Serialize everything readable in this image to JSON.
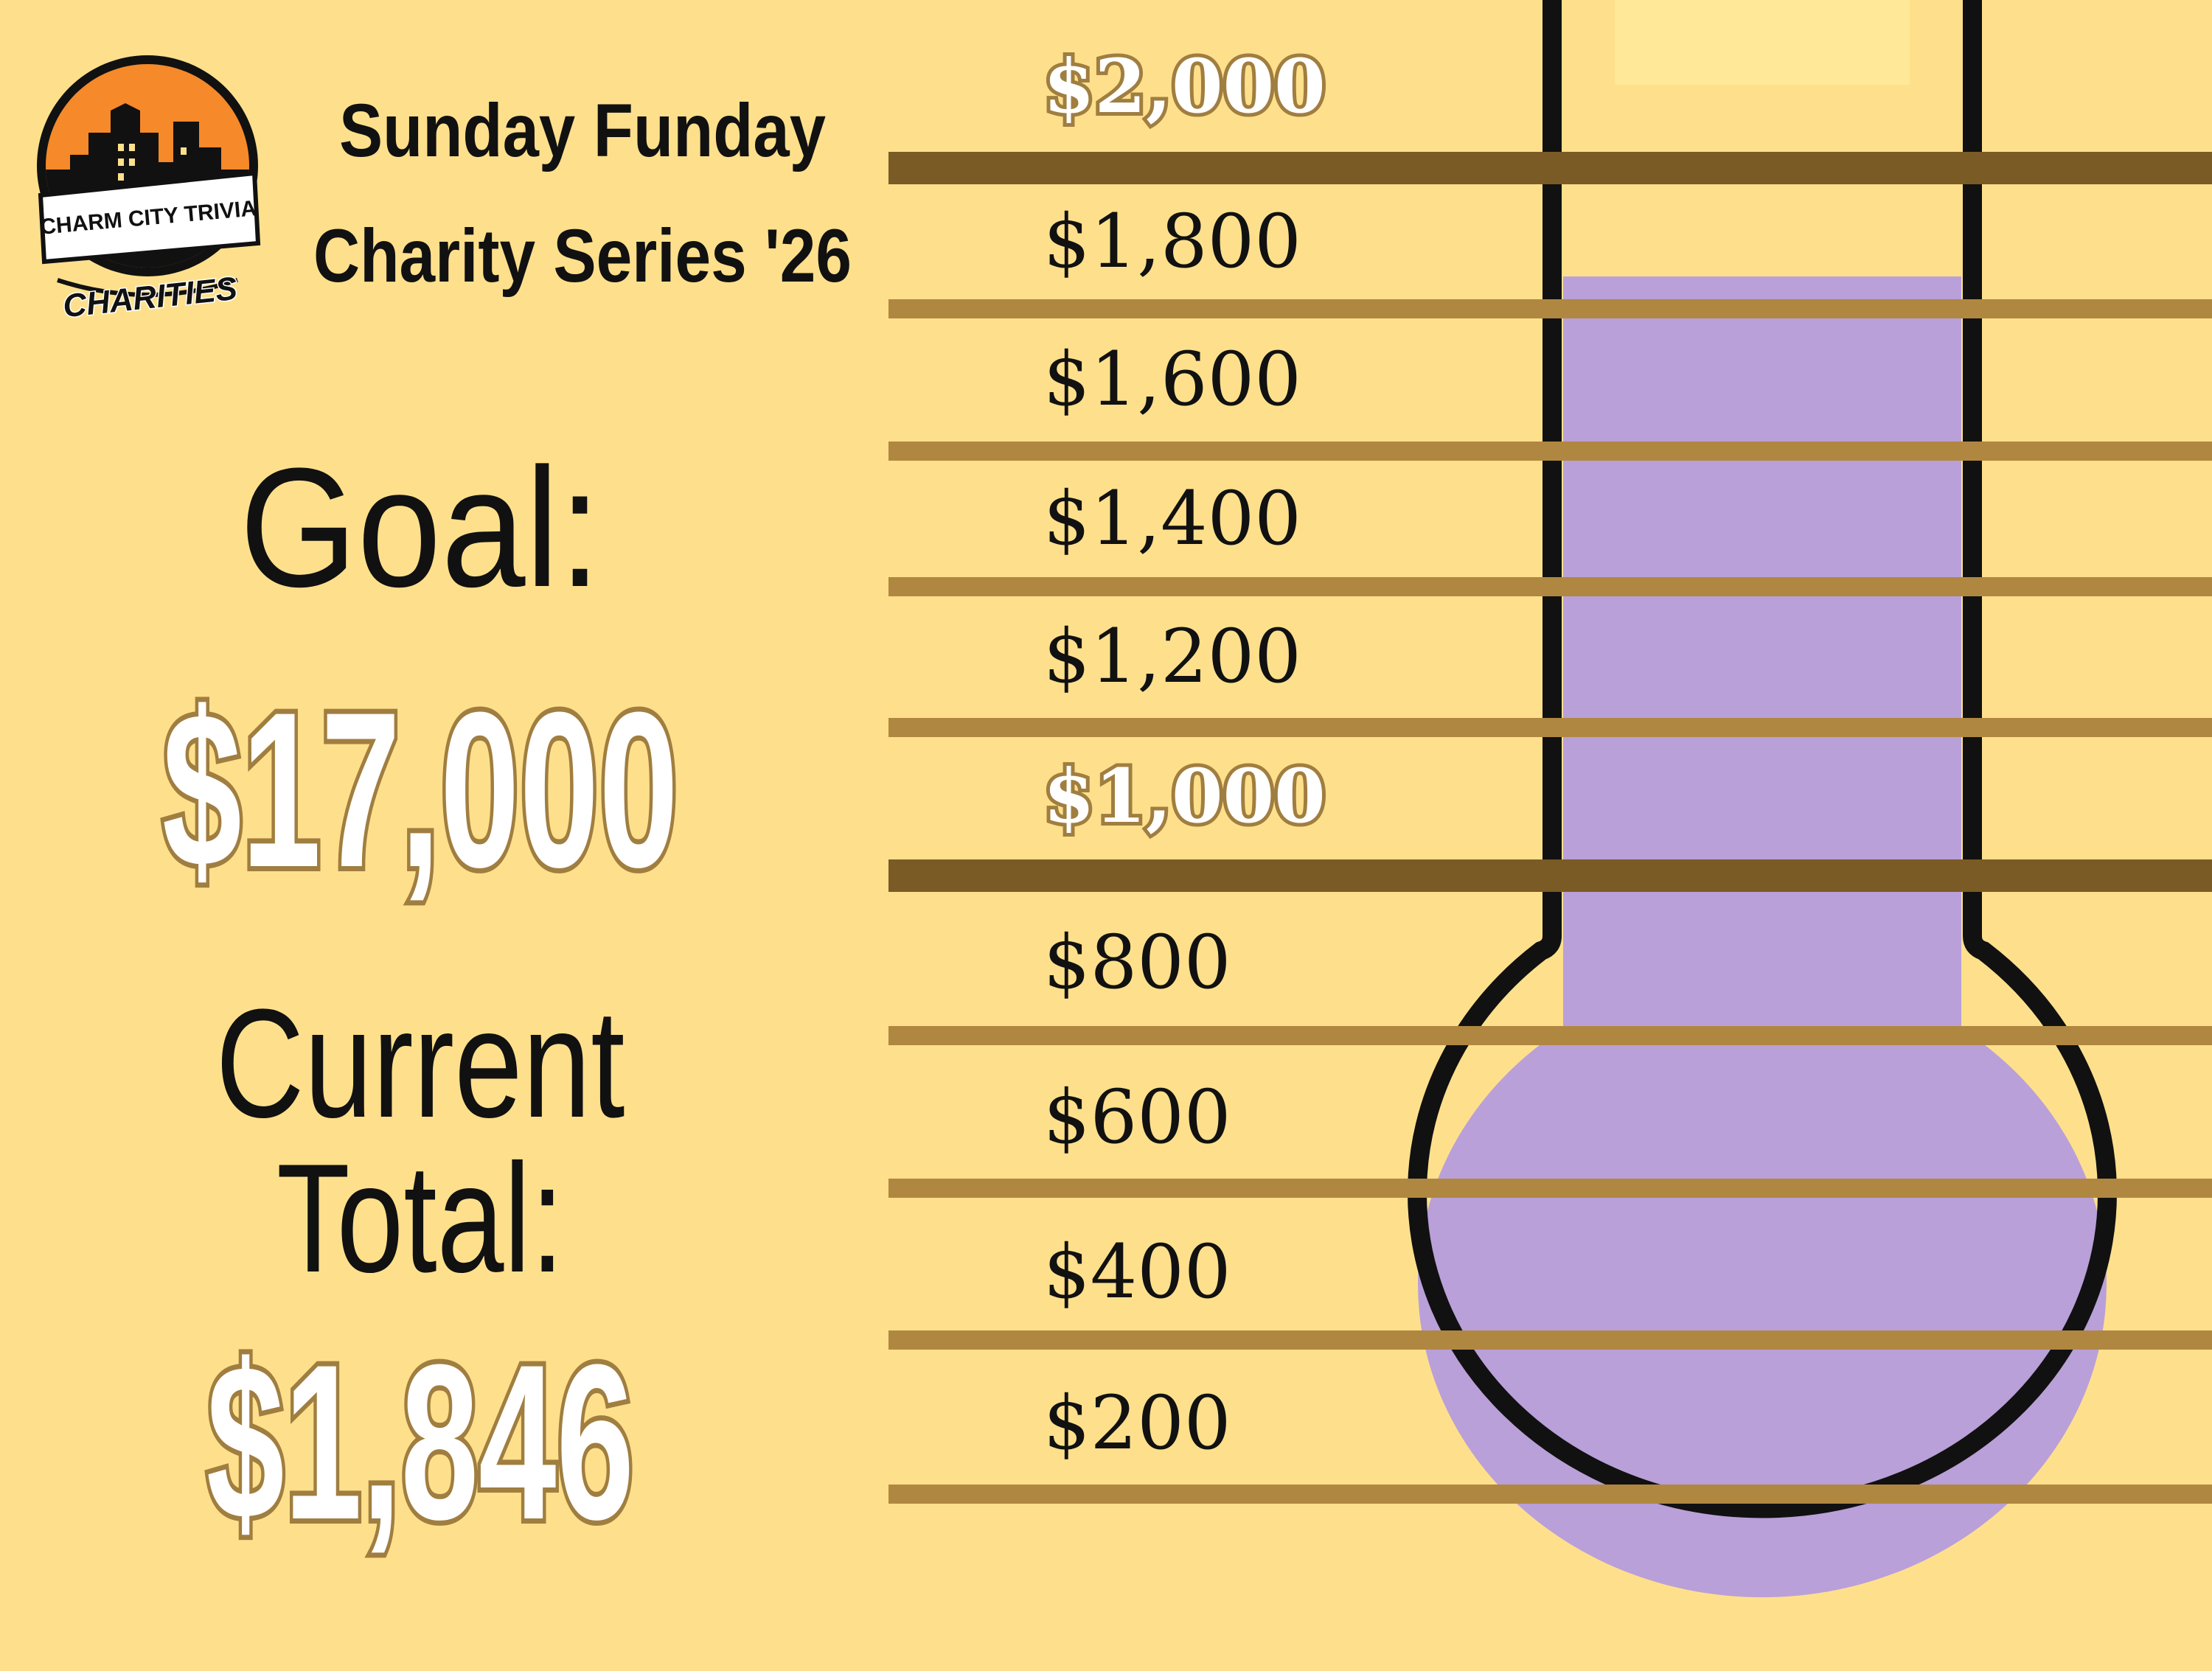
{
  "logo": {
    "top_text": "CHARM CITY TRIVIA",
    "bottom_text": "CHARITIES"
  },
  "header": {
    "title_line1": "Sunday Funday",
    "title_line2": "Charity Series '26"
  },
  "goal": {
    "label": "Goal:",
    "amount": "$17,000"
  },
  "current": {
    "label_line1": "Current",
    "label_line2": "Total:",
    "amount": "$1,846"
  },
  "thermometer": {
    "fill_value": 1846,
    "scale_max": 2000,
    "ticks": [
      {
        "label": "$2,000",
        "value": 2000,
        "highlight": true
      },
      {
        "label": "$1,800",
        "value": 1800,
        "highlight": false
      },
      {
        "label": "$1,600",
        "value": 1600,
        "highlight": false
      },
      {
        "label": "$1,400",
        "value": 1400,
        "highlight": false
      },
      {
        "label": "$1,200",
        "value": 1200,
        "highlight": false
      },
      {
        "label": "$1,000",
        "value": 1000,
        "highlight": true
      },
      {
        "label": "$800",
        "value": 800,
        "highlight": false
      },
      {
        "label": "$600",
        "value": 600,
        "highlight": false
      },
      {
        "label": "$400",
        "value": 400,
        "highlight": false
      },
      {
        "label": "$200",
        "value": 200,
        "highlight": false
      }
    ]
  },
  "colors": {
    "background": "#fee08c",
    "fill": "#b9a0d9",
    "tube_top": "#ffe898",
    "line": "#b08740",
    "line_major": "#7a5a25",
    "outline_text": "#a07e40",
    "logo_orange": "#f6892a"
  }
}
